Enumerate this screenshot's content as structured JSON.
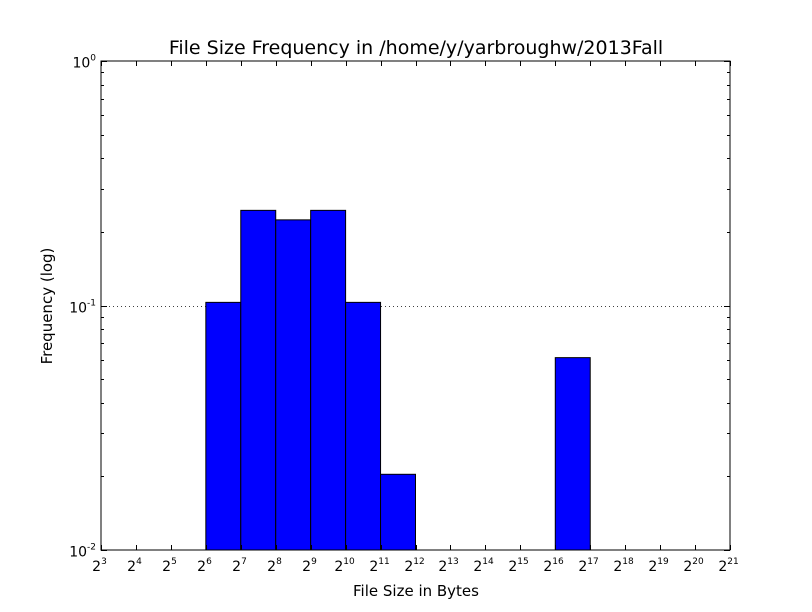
{
  "chart_data": {
    "type": "bar",
    "title": "File Size Frequency in /home/y/yarbroughw/2013Fall",
    "xlabel": "File Size in Bytes",
    "ylabel": "Frequency (log)",
    "x_scale": "log2",
    "y_scale": "log10",
    "xlim_exponent": [
      3,
      21
    ],
    "ylim_exponent": [
      -2,
      0
    ],
    "x_tick_base": "2",
    "x_tick_exponents": [
      "3",
      "4",
      "5",
      "6",
      "7",
      "8",
      "9",
      "10",
      "11",
      "12",
      "13",
      "14",
      "15",
      "16",
      "17",
      "18",
      "19",
      "20",
      "21"
    ],
    "y_tick_base": "10",
    "y_tick_exponents": [
      "-2",
      "-1",
      "0"
    ],
    "bar_color": "#0000ff",
    "grid": "dotted horizontal at major y ticks",
    "bins": [
      {
        "range": "2^6-2^7",
        "x_start_exponent": 6,
        "x_end_exponent": 7,
        "value": 0.103
      },
      {
        "range": "2^7-2^8",
        "x_start_exponent": 7,
        "x_end_exponent": 8,
        "value": 0.245
      },
      {
        "range": "2^8-2^9",
        "x_start_exponent": 8,
        "x_end_exponent": 9,
        "value": 0.224
      },
      {
        "range": "2^9-2^10",
        "x_start_exponent": 9,
        "x_end_exponent": 10,
        "value": 0.245
      },
      {
        "range": "2^10-2^11",
        "x_start_exponent": 10,
        "x_end_exponent": 11,
        "value": 0.103
      },
      {
        "range": "2^11-2^12",
        "x_start_exponent": 11,
        "x_end_exponent": 12,
        "value": 0.0204
      },
      {
        "range": "2^16-2^17",
        "x_start_exponent": 16,
        "x_end_exponent": 17,
        "value": 0.0612
      }
    ]
  }
}
